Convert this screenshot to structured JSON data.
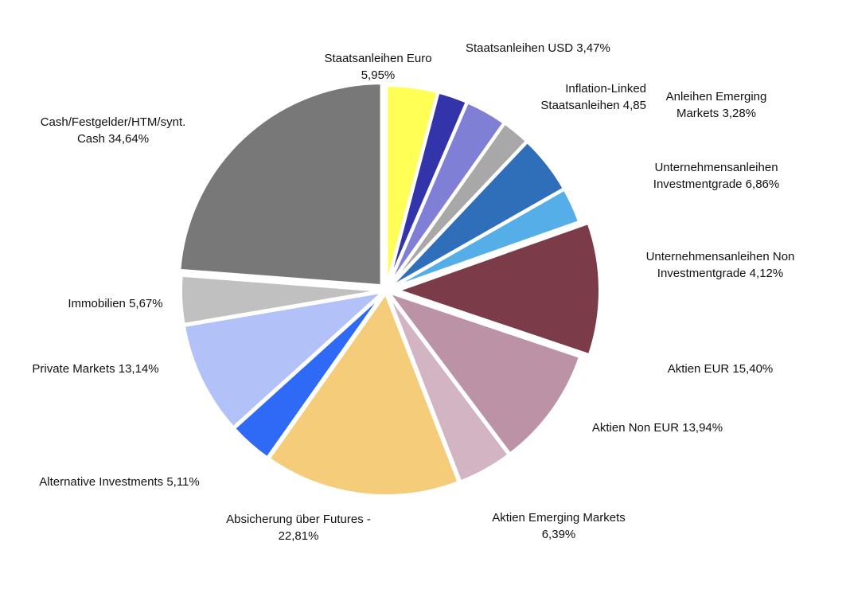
{
  "chart_data": {
    "type": "pie",
    "title": "",
    "slices": [
      {
        "label": "Staatsanleihen Euro 5,95%",
        "lines": [
          "Staatsanleihen Euro",
          "5,95%"
        ],
        "value": 5.95,
        "color": "#FFFF55"
      },
      {
        "label": "Staatsanleihen USD 3,47%",
        "lines": [
          "Staatsanleihen USD 3,47%"
        ],
        "value": 3.47,
        "color": "#3333AA"
      },
      {
        "label": "Inflation-Linked Staatsanleihen 4,85",
        "lines": [
          "Inflation-Linked",
          "Staatsanleihen 4,85"
        ],
        "value": 4.85,
        "color": "#7F7FD5"
      },
      {
        "label": "Anleihen Emerging Markets 3,28%",
        "lines": [
          "Anleihen Emerging",
          "Markets 3,28%"
        ],
        "value": 3.28,
        "color": "#A8A8A8"
      },
      {
        "label": "Unternehmensanleihen Investmentgrade 6,86%",
        "lines": [
          "Unternehmensanleihen",
          "Investmentgrade 6,86%"
        ],
        "value": 6.86,
        "color": "#2F6FBA"
      },
      {
        "label": "Unternehmensanleihen Non Investmentgrade 4,12%",
        "lines": [
          "Unternehmensanleihen Non",
          "Investmentgrade 4,12%"
        ],
        "value": 4.12,
        "color": "#55AEE8"
      },
      {
        "label": "Aktien EUR 15,40%",
        "lines": [
          "Aktien EUR 15,40%"
        ],
        "value": 15.4,
        "color": "#7B3B48"
      },
      {
        "label": "Aktien Non EUR 13,94%",
        "lines": [
          "Aktien Non EUR 13,94%"
        ],
        "value": 13.94,
        "color": "#BC92A6"
      },
      {
        "label": "Aktien Emerging Markets 6,39%",
        "lines": [
          "Aktien Emerging Markets",
          "6,39%"
        ],
        "value": 6.39,
        "color": "#D2B4C2"
      },
      {
        "label": "Absicherung über Futures - 22,81%",
        "lines": [
          "Absicherung über Futures -",
          "22,81%"
        ],
        "value": 22.81,
        "color": "#F5CC7A"
      },
      {
        "label": "Alternative Investments 5,11%",
        "lines": [
          "Alternative Investments 5,11%"
        ],
        "value": 5.11,
        "color": "#2E6AF5"
      },
      {
        "label": "Private Markets 13,14%",
        "lines": [
          "Private Markets 13,14%"
        ],
        "value": 13.14,
        "color": "#B2C2F8"
      },
      {
        "label": "Immobilien 5,67%",
        "lines": [
          "Immobilien  5,67%"
        ],
        "value": 5.67,
        "color": "#C0C0C0"
      },
      {
        "label": "Cash/Festgelder/HTM/synt. Cash 34,64%",
        "lines": [
          "Cash/Festgelder/HTM/synt.",
          "Cash 34,64%"
        ],
        "value": 34.64,
        "color": "#787878"
      }
    ],
    "start_angle_deg": 0,
    "direction": "clockwise"
  }
}
